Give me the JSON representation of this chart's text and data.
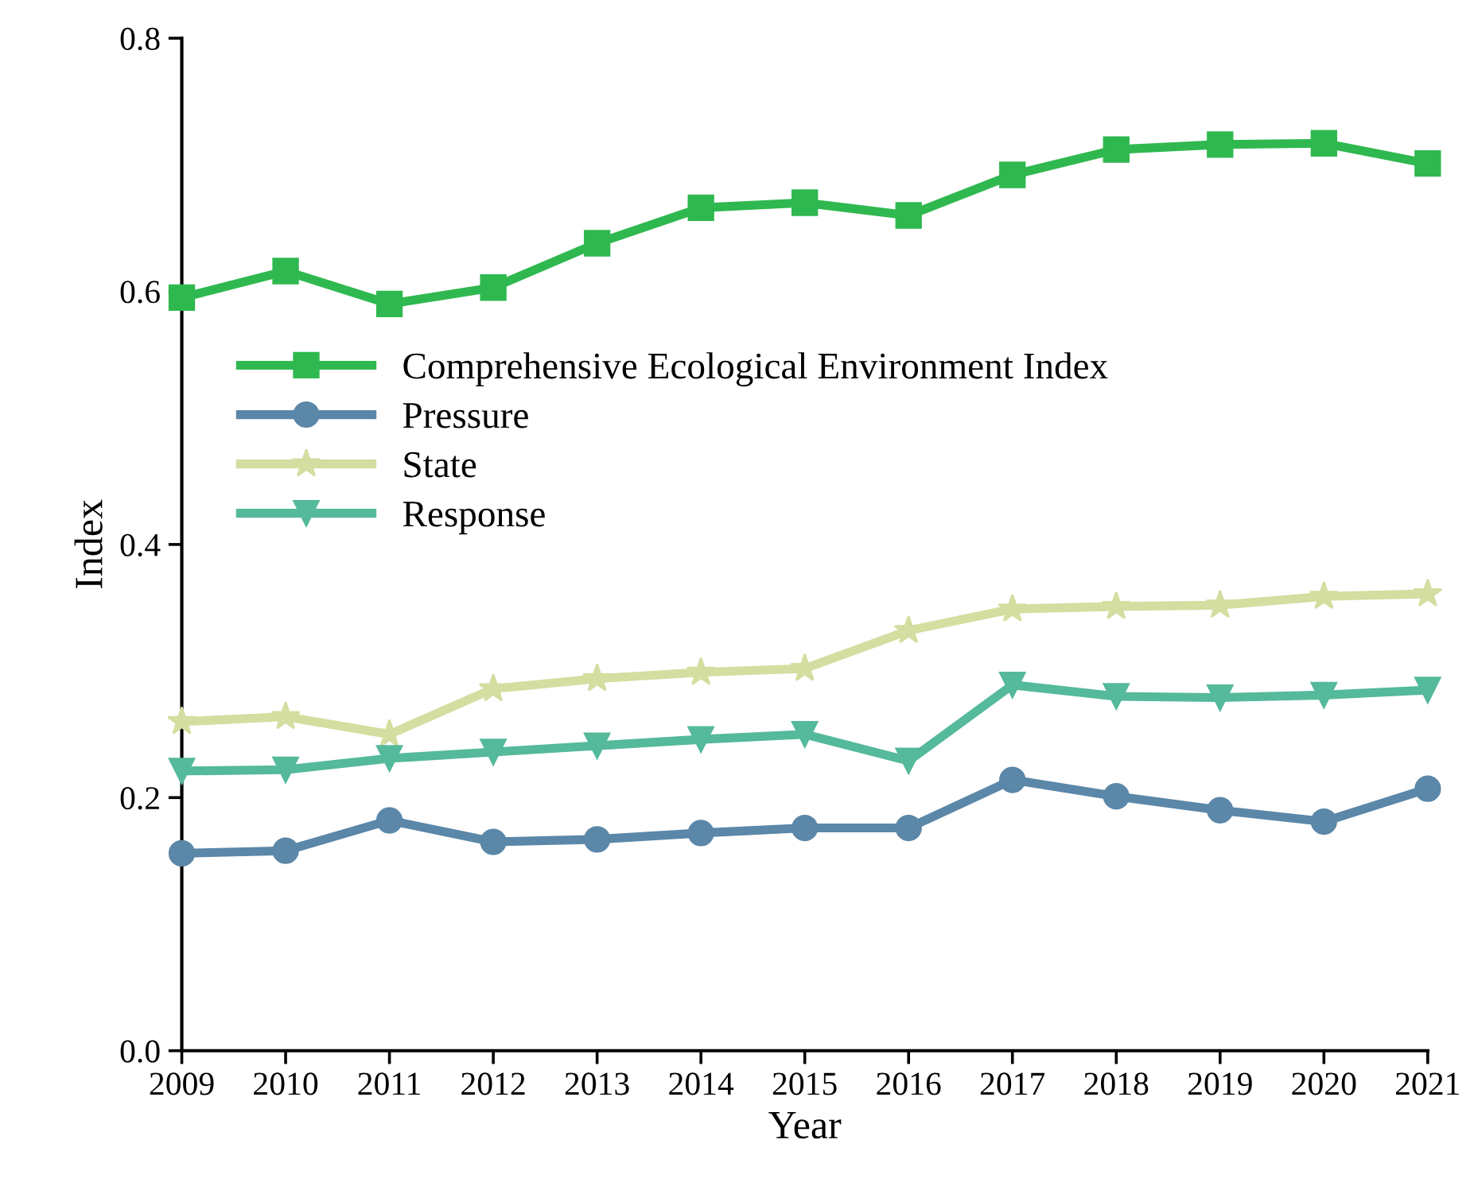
{
  "chart_data": {
    "type": "line",
    "xlabel": "Year",
    "ylabel": "Index",
    "x": [
      2009,
      2010,
      2011,
      2012,
      2013,
      2014,
      2015,
      2016,
      2017,
      2018,
      2019,
      2020,
      2021
    ],
    "series": [
      {
        "name": "Comprehensive Ecological Environment Index",
        "color": "#2fb84f",
        "marker": "square",
        "values": [
          0.595,
          0.616,
          0.59,
          0.603,
          0.638,
          0.666,
          0.67,
          0.66,
          0.692,
          0.712,
          0.716,
          0.717,
          0.701
        ]
      },
      {
        "name": "Pressure",
        "color": "#5b87a8",
        "marker": "circle",
        "values": [
          0.156,
          0.158,
          0.182,
          0.165,
          0.167,
          0.172,
          0.176,
          0.176,
          0.214,
          0.201,
          0.19,
          0.181,
          0.207
        ]
      },
      {
        "name": "State",
        "color": "#d3dea0",
        "marker": "star",
        "values": [
          0.26,
          0.264,
          0.25,
          0.286,
          0.294,
          0.299,
          0.302,
          0.332,
          0.349,
          0.351,
          0.352,
          0.359,
          0.361
        ]
      },
      {
        "name": "Response",
        "color": "#55b99b",
        "marker": "triangle",
        "values": [
          0.221,
          0.222,
          0.231,
          0.236,
          0.241,
          0.246,
          0.25,
          0.229,
          0.289,
          0.28,
          0.279,
          0.281,
          0.285
        ]
      }
    ],
    "xlim": [
      2009,
      2021
    ],
    "xticks": [
      2009,
      2010,
      2011,
      2012,
      2013,
      2014,
      2015,
      2016,
      2017,
      2018,
      2019,
      2020,
      2021
    ],
    "ylim": [
      0.0,
      0.8
    ],
    "yticks": [
      {
        "value": 0.0,
        "label": "0.0"
      },
      {
        "value": 0.2,
        "label": "0.2"
      },
      {
        "value": 0.4,
        "label": "0.4"
      },
      {
        "value": 0.6,
        "label": "0.6"
      },
      {
        "value": 0.8,
        "label": "0.8"
      }
    ],
    "grid": false,
    "legend": "left",
    "line_style": "solid"
  }
}
